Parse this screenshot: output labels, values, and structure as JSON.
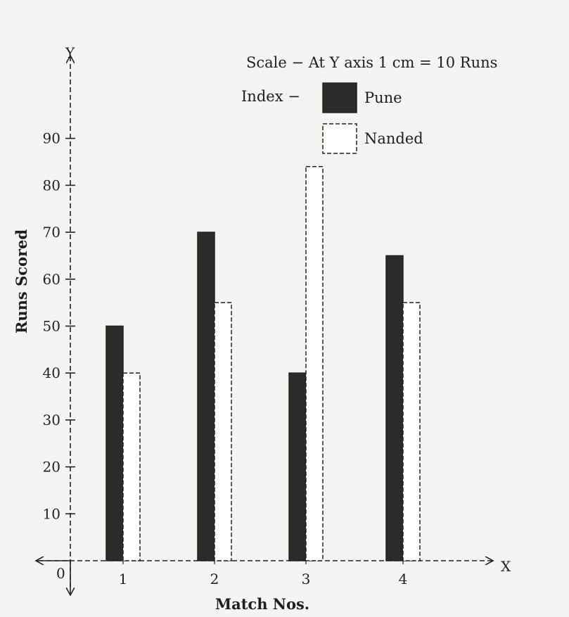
{
  "chart_data": {
    "type": "bar",
    "title": "",
    "scale_note": "Scale − At Y axis 1 cm = 10 Runs",
    "legend_label": "Index −",
    "xlabel": "Match Nos.",
    "ylabel": "Runs Scored",
    "x_axis_letter": "X",
    "y_axis_letter": "Y",
    "origin_label": "0",
    "categories": [
      "1",
      "2",
      "3",
      "4"
    ],
    "yticks": [
      "10",
      "20",
      "30",
      "40",
      "50",
      "60",
      "70",
      "80",
      "90"
    ],
    "ylim": [
      0,
      100
    ],
    "series": [
      {
        "name": "Pune",
        "values": [
          50,
          70,
          40,
          65
        ],
        "color": "#2b2b2b"
      },
      {
        "name": "Nanded",
        "values": [
          40,
          55,
          84,
          55
        ],
        "color": "#ffffff"
      }
    ],
    "legend_position": "top-right",
    "grid": false
  }
}
